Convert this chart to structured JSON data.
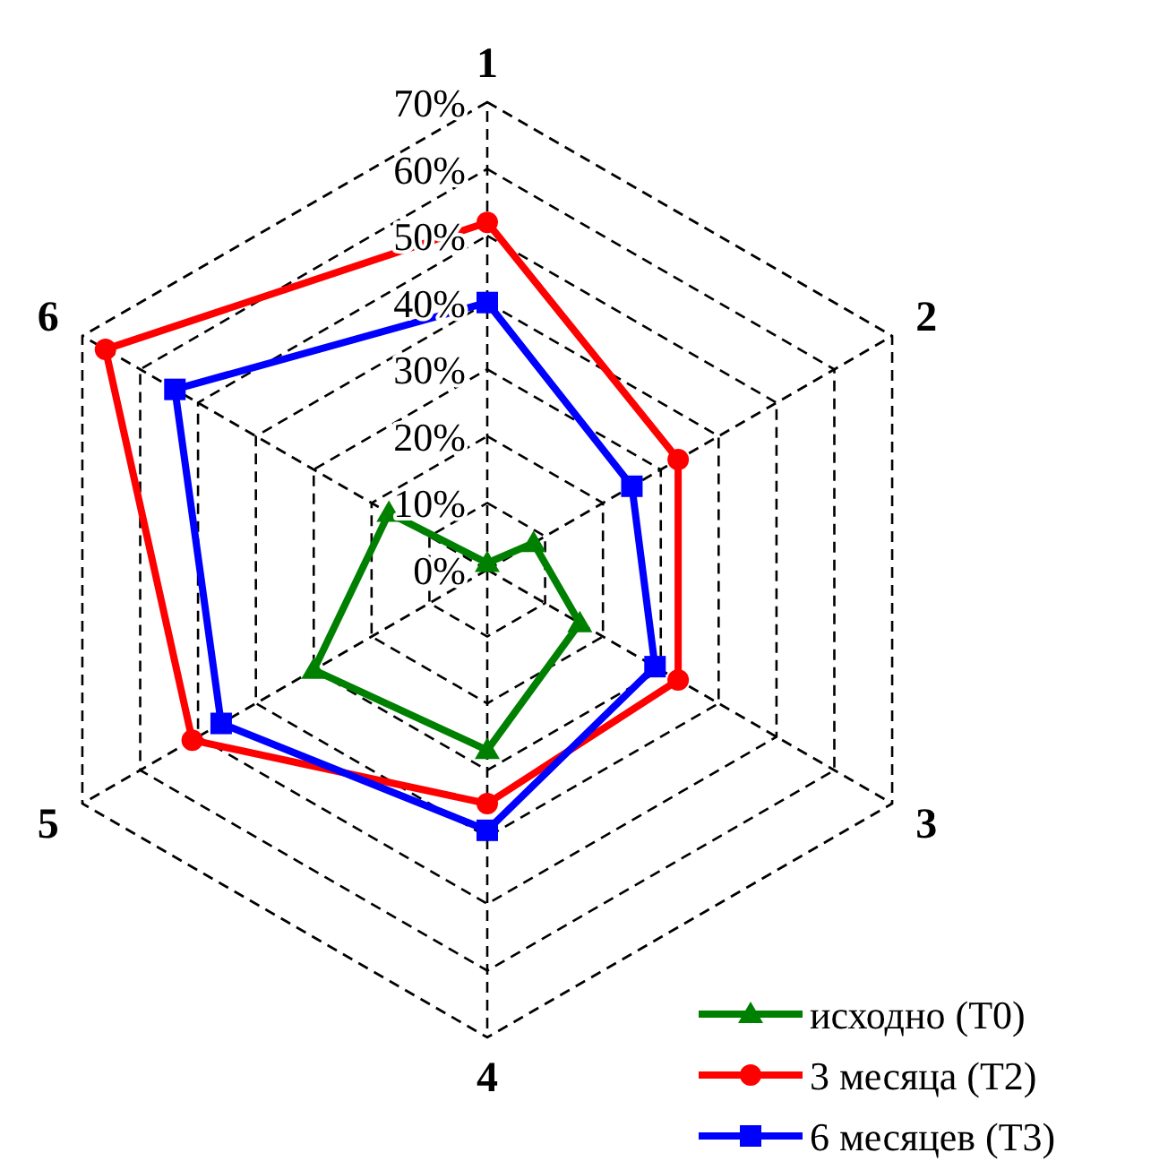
{
  "chart_data": {
    "type": "radar",
    "categories": [
      "1",
      "2",
      "3",
      "4",
      "5",
      "6"
    ],
    "ylim": [
      0,
      70
    ],
    "yticks": [
      {
        "value": 0,
        "label": "0%"
      },
      {
        "value": 10,
        "label": "10%"
      },
      {
        "value": 20,
        "label": "20%"
      },
      {
        "value": 30,
        "label": "30%"
      },
      {
        "value": 40,
        "label": "40%"
      },
      {
        "value": 50,
        "label": "50%"
      },
      {
        "value": 60,
        "label": "60%"
      },
      {
        "value": 70,
        "label": "70%"
      }
    ],
    "grid": true,
    "legend": "bottom right",
    "line_style": "solid",
    "series": [
      {
        "name": "исходно (T0)",
        "color": "#008000",
        "marker": "triangle",
        "values": [
          1,
          8,
          16,
          27,
          30,
          17
        ]
      },
      {
        "name": "3 месяца (T2)",
        "color": "#ff0000",
        "marker": "circle",
        "values": [
          52,
          33,
          33,
          35,
          51,
          66
        ]
      },
      {
        "name": "6 месяцев (T3)",
        "color": "#0000ff",
        "marker": "square",
        "values": [
          40,
          25,
          29,
          39,
          46,
          54
        ]
      }
    ]
  }
}
